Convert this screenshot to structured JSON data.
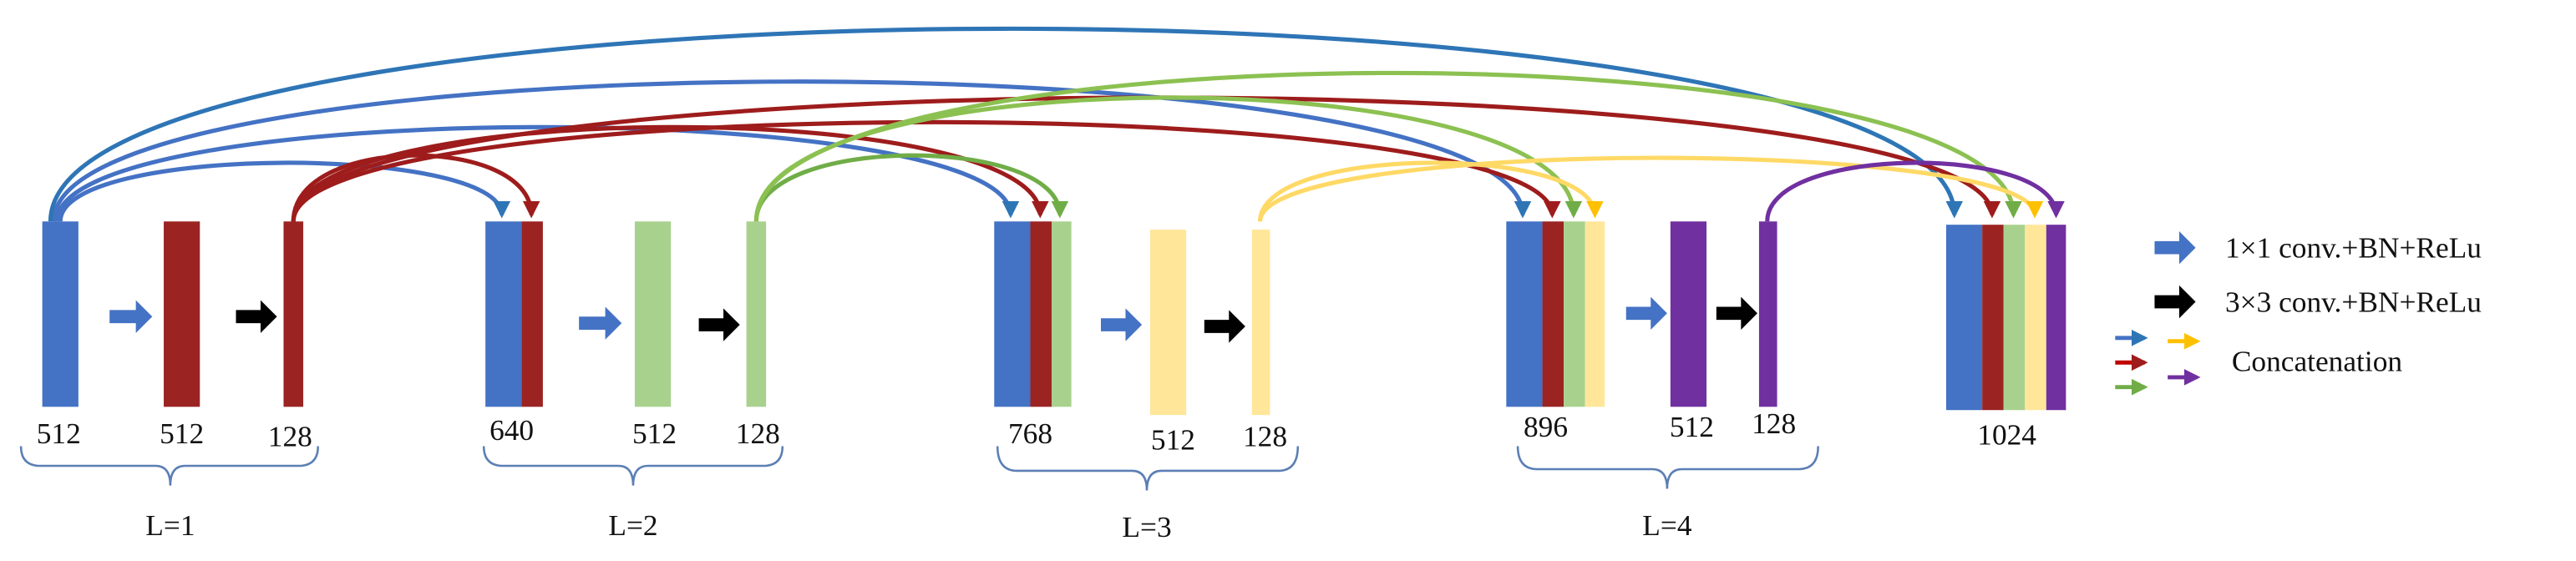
{
  "blocks": [
    {
      "label": "512"
    },
    {
      "label": "512"
    },
    {
      "label": "128"
    },
    {
      "label": "640"
    },
    {
      "label": "512"
    },
    {
      "label": "128"
    },
    {
      "label": "768"
    },
    {
      "label": "512"
    },
    {
      "label": "128"
    },
    {
      "label": "896"
    },
    {
      "label": "512"
    },
    {
      "label": "128"
    },
    {
      "label": "1024"
    }
  ],
  "levels": [
    "L=1",
    "L=2",
    "L=3",
    "L=4"
  ],
  "legend": [
    "1×1 conv.+BN+ReLu",
    "3×3 conv.+BN+ReLu",
    "Concatenation"
  ]
}
